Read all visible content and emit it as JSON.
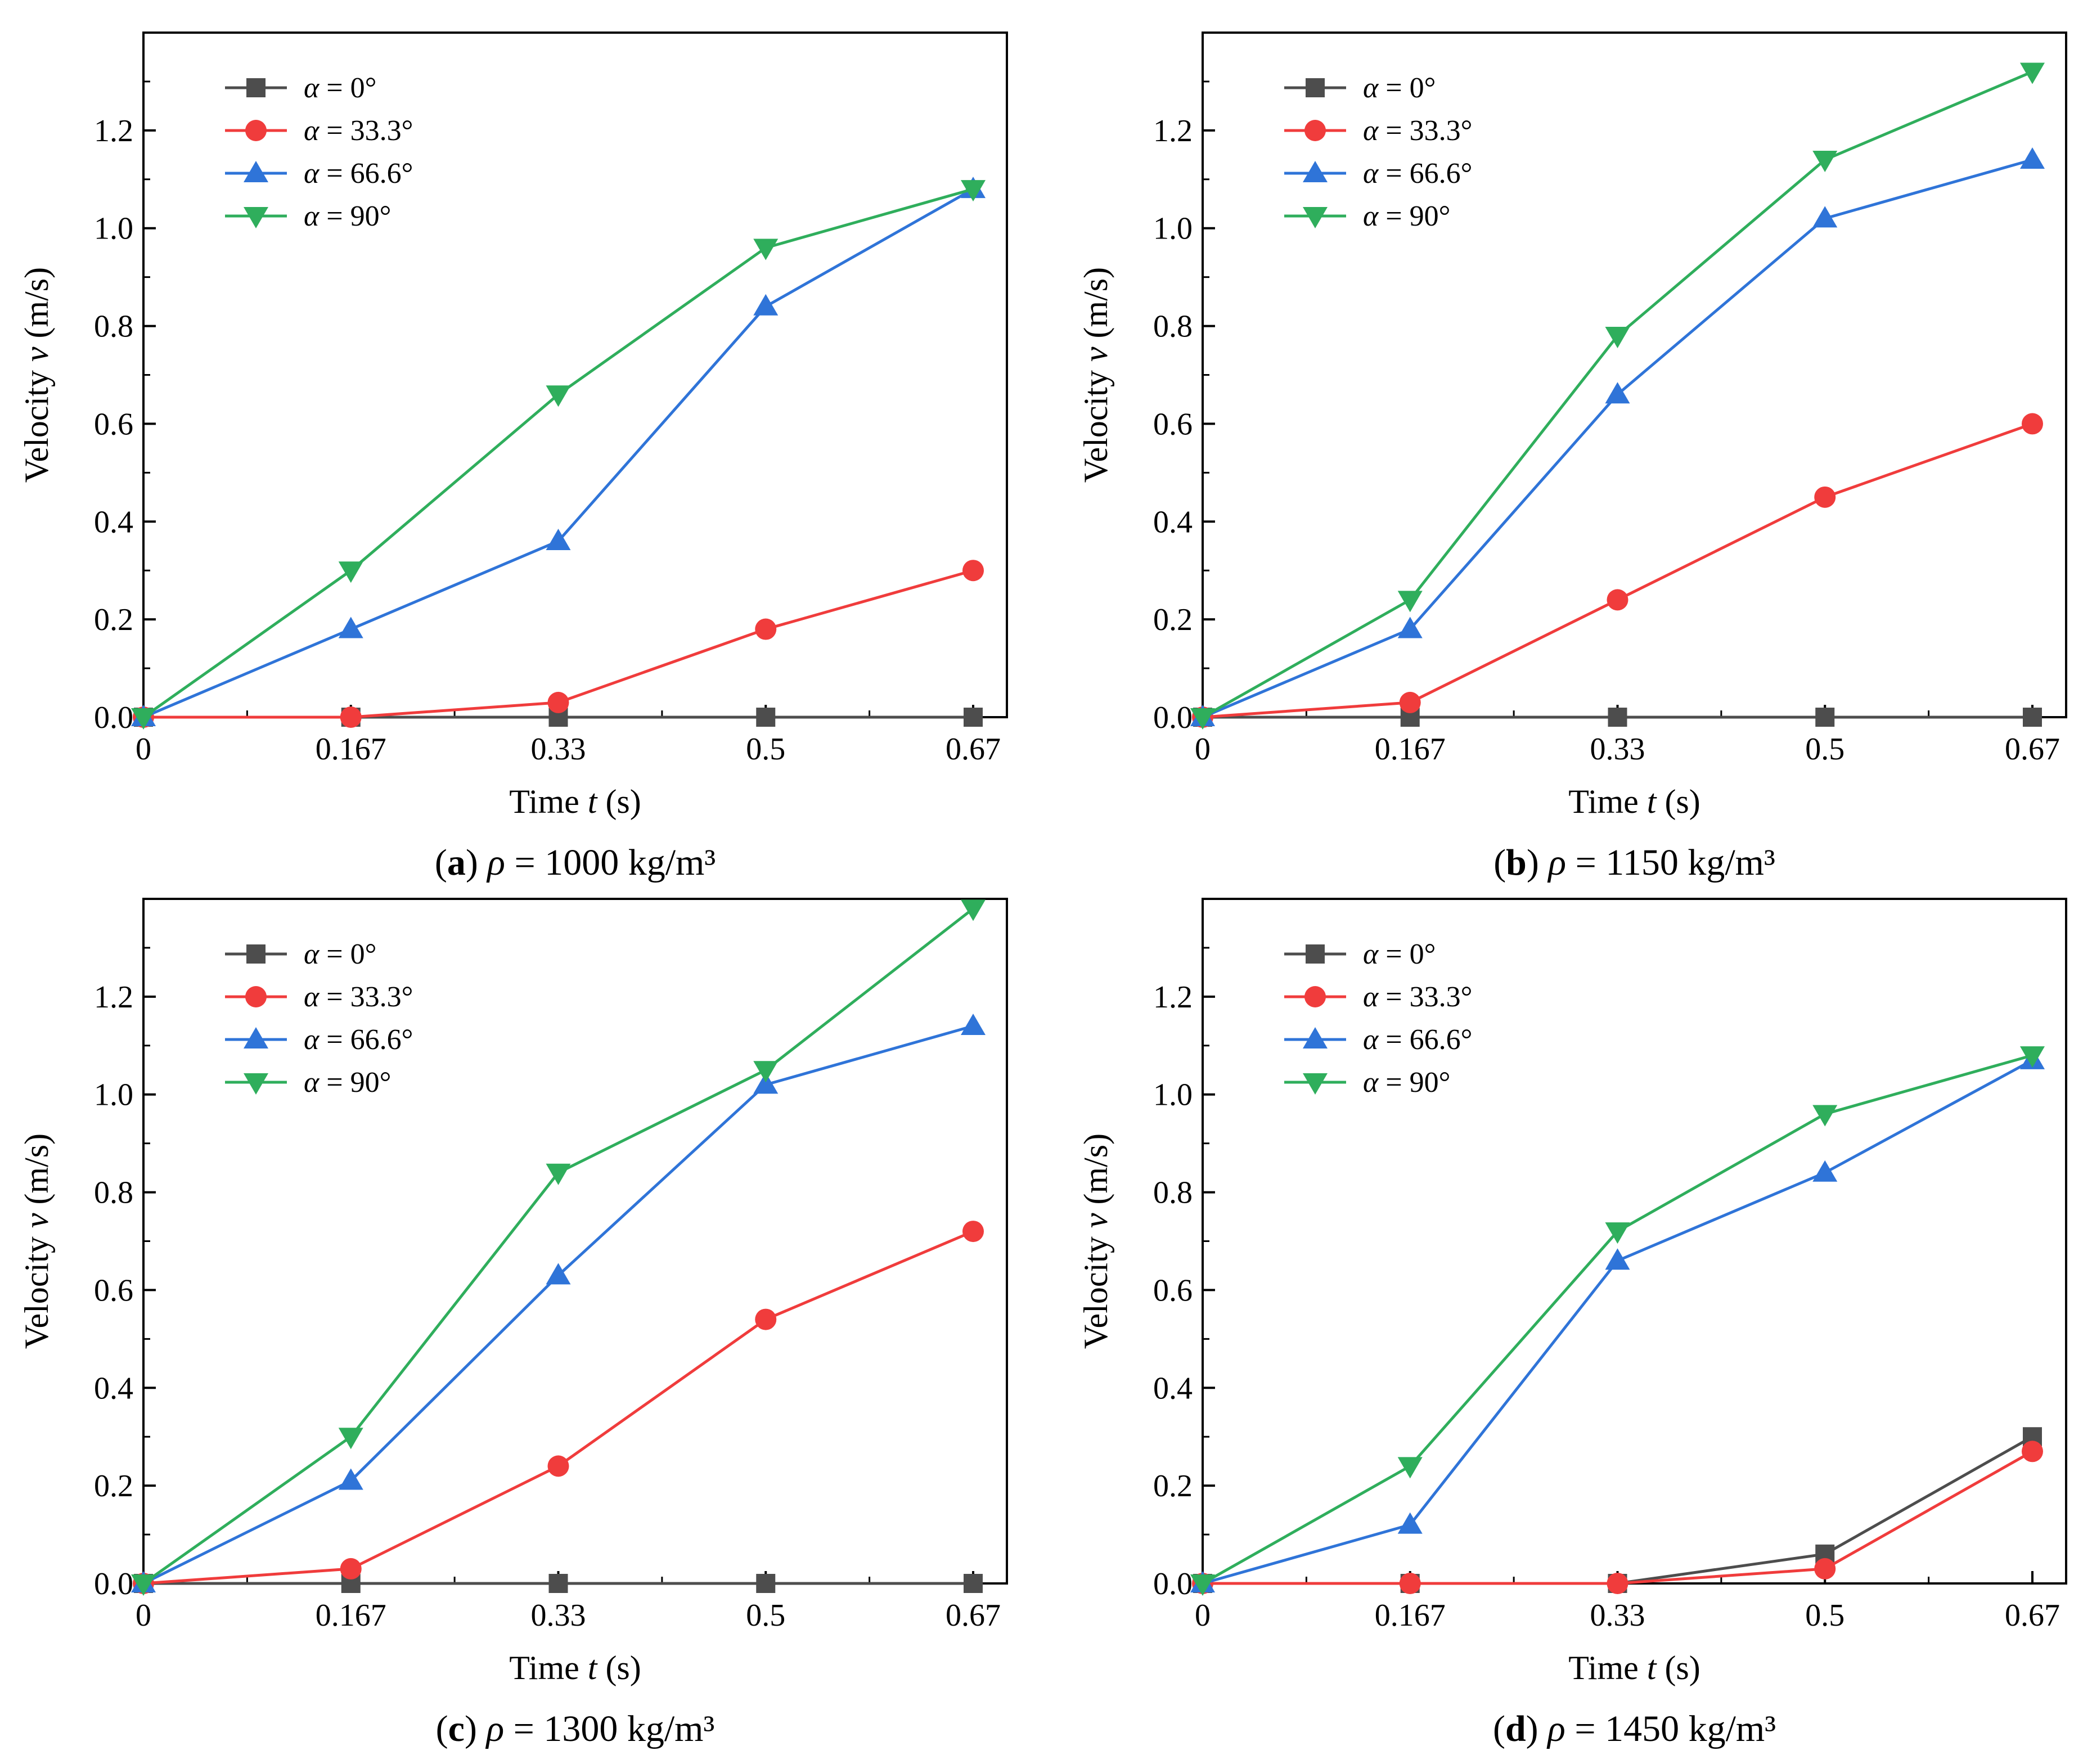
{
  "colors": {
    "alpha_0": "#4d4d4d",
    "alpha_33_3": "#f03c3c",
    "alpha_66_6": "#2f74d8",
    "alpha_90": "#2fae5c",
    "axis": "#000000"
  },
  "markers": [
    "square",
    "circle",
    "triangle-up",
    "triangle-down"
  ],
  "chart_data": [
    {
      "type": "line",
      "panel_letter": "a",
      "rho_symbol": "ρ",
      "caption_value": "= 1000 kg/m³",
      "xlabel_prefix": "Time ",
      "xlabel_var": "t",
      "xlabel_unit": " (s)",
      "ylabel_prefix": "Velocity ",
      "ylabel_var": "v",
      "ylabel_unit": " (m/s)",
      "x_ticks": [
        "0",
        "0.167",
        "0.33",
        "0.5",
        "0.67"
      ],
      "y_ticks": [
        "0.0",
        "0.2",
        "0.4",
        "0.6",
        "0.8",
        "1.0",
        "1.2"
      ],
      "ylim": [
        0,
        1.4
      ],
      "legend_position": "top-left",
      "series": [
        {
          "alpha_symbol": "α",
          "name": "= 0°",
          "values": [
            0,
            0,
            0,
            0,
            0
          ]
        },
        {
          "alpha_symbol": "α",
          "name": "= 33.3°",
          "values": [
            0,
            0,
            0.03,
            0.18,
            0.3
          ]
        },
        {
          "alpha_symbol": "α",
          "name": "= 66.6°",
          "values": [
            0,
            0.18,
            0.36,
            0.84,
            1.08
          ]
        },
        {
          "alpha_symbol": "α",
          "name": "= 90°",
          "values": [
            0,
            0.3,
            0.66,
            0.96,
            1.08
          ]
        }
      ]
    },
    {
      "type": "line",
      "panel_letter": "b",
      "rho_symbol": "ρ",
      "caption_value": "= 1150 kg/m³",
      "xlabel_prefix": "Time ",
      "xlabel_var": "t",
      "xlabel_unit": " (s)",
      "ylabel_prefix": "Velocity ",
      "ylabel_var": "v",
      "ylabel_unit": " (m/s)",
      "x_ticks": [
        "0",
        "0.167",
        "0.33",
        "0.5",
        "0.67"
      ],
      "y_ticks": [
        "0.0",
        "0.2",
        "0.4",
        "0.6",
        "0.8",
        "1.0",
        "1.2"
      ],
      "ylim": [
        0,
        1.4
      ],
      "legend_position": "top-left",
      "series": [
        {
          "alpha_symbol": "α",
          "name": "= 0°",
          "values": [
            0,
            0,
            0,
            0,
            0
          ]
        },
        {
          "alpha_symbol": "α",
          "name": "= 33.3°",
          "values": [
            0,
            0.03,
            0.24,
            0.45,
            0.6
          ]
        },
        {
          "alpha_symbol": "α",
          "name": "= 66.6°",
          "values": [
            0,
            0.18,
            0.66,
            1.02,
            1.14
          ]
        },
        {
          "alpha_symbol": "α",
          "name": "= 90°",
          "values": [
            0,
            0.24,
            0.78,
            1.14,
            1.32
          ]
        }
      ]
    },
    {
      "type": "line",
      "panel_letter": "c",
      "rho_symbol": "ρ",
      "caption_value": "= 1300 kg/m³",
      "xlabel_prefix": "Time ",
      "xlabel_var": "t",
      "xlabel_unit": " (s)",
      "ylabel_prefix": "Velocity ",
      "ylabel_var": "v",
      "ylabel_unit": " (m/s)",
      "x_ticks": [
        "0",
        "0.167",
        "0.33",
        "0.5",
        "0.67"
      ],
      "y_ticks": [
        "0.0",
        "0.2",
        "0.4",
        "0.6",
        "0.8",
        "1.0",
        "1.2"
      ],
      "ylim": [
        0,
        1.4
      ],
      "legend_position": "top-left",
      "series": [
        {
          "alpha_symbol": "α",
          "name": "= 0°",
          "values": [
            0,
            0,
            0,
            0,
            0
          ]
        },
        {
          "alpha_symbol": "α",
          "name": "= 33.3°",
          "values": [
            0,
            0.03,
            0.24,
            0.54,
            0.72
          ]
        },
        {
          "alpha_symbol": "α",
          "name": "= 66.6°",
          "values": [
            0,
            0.21,
            0.63,
            1.02,
            1.14
          ]
        },
        {
          "alpha_symbol": "α",
          "name": "= 90°",
          "values": [
            0,
            0.3,
            0.84,
            1.05,
            1.38
          ]
        }
      ]
    },
    {
      "type": "line",
      "panel_letter": "d",
      "rho_symbol": "ρ",
      "caption_value": "= 1450 kg/m³",
      "xlabel_prefix": "Time ",
      "xlabel_var": "t",
      "xlabel_unit": " (s)",
      "ylabel_prefix": "Velocity ",
      "ylabel_var": "v",
      "ylabel_unit": " (m/s)",
      "x_ticks": [
        "0",
        "0.167",
        "0.33",
        "0.5",
        "0.67"
      ],
      "y_ticks": [
        "0.0",
        "0.2",
        "0.4",
        "0.6",
        "0.8",
        "1.0",
        "1.2"
      ],
      "ylim": [
        0,
        1.4
      ],
      "legend_position": "top-left",
      "series": [
        {
          "alpha_symbol": "α",
          "name": "= 0°",
          "values": [
            0,
            0,
            0,
            0.06,
            0.3
          ]
        },
        {
          "alpha_symbol": "α",
          "name": "= 33.3°",
          "values": [
            0,
            0,
            0,
            0.03,
            0.27
          ]
        },
        {
          "alpha_symbol": "α",
          "name": "= 66.6°",
          "values": [
            0,
            0.12,
            0.66,
            0.84,
            1.07
          ]
        },
        {
          "alpha_symbol": "α",
          "name": "= 90°",
          "values": [
            0,
            0.24,
            0.72,
            0.96,
            1.08
          ]
        }
      ]
    }
  ]
}
